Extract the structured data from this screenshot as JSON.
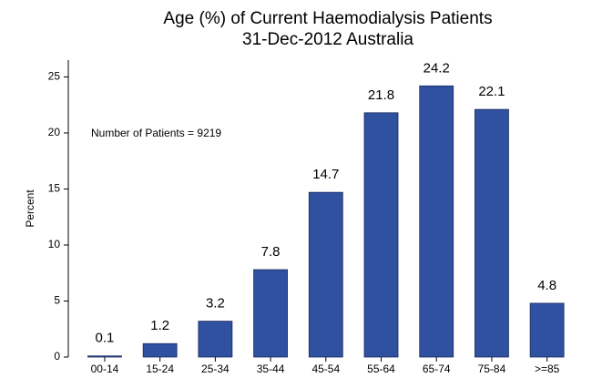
{
  "chart_data": {
    "type": "bar",
    "title": "Age (%) of Current Haemodialysis Patients",
    "subtitle": "31-Dec-2012 Australia",
    "annotation": "Number of Patients = 9219",
    "y_label": "Percent",
    "categories": [
      "00-14",
      "15-24",
      "25-34",
      "35-44",
      "45-54",
      "55-64",
      "65-74",
      "75-84",
      ">=85"
    ],
    "values": [
      0.1,
      1.2,
      3.2,
      7.8,
      14.7,
      21.8,
      24.2,
      22.1,
      4.8
    ],
    "color": "#3050a0",
    "ylim": [
      0,
      26.5
    ],
    "yticks": [
      0,
      5,
      10,
      15,
      20,
      25
    ],
    "grid": false
  }
}
